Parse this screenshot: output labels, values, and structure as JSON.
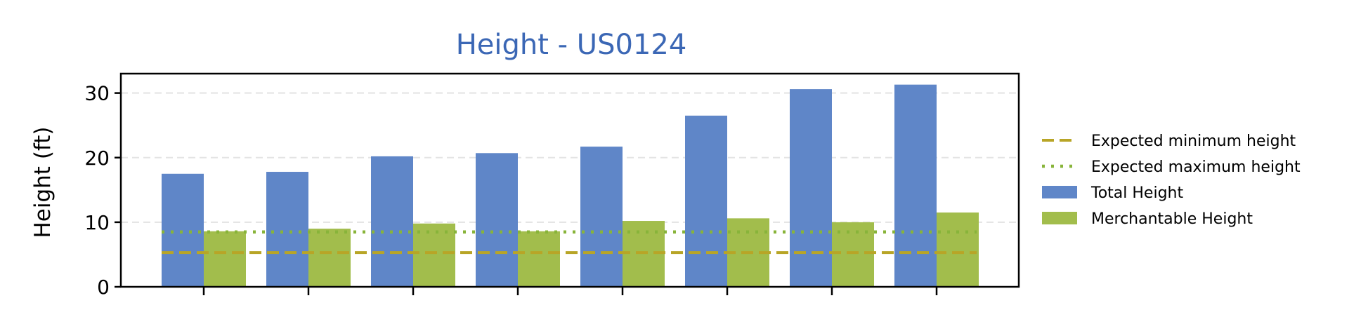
{
  "chart_data": {
    "type": "bar",
    "title": "Height - US0124",
    "xlabel": "",
    "ylabel": "Height (ft)",
    "ylim": [
      0,
      33
    ],
    "yticks": [
      0,
      10,
      20,
      30
    ],
    "categories": [
      "",
      "",
      "",
      "",
      "",
      "",
      "",
      ""
    ],
    "series": [
      {
        "name": "Total Height",
        "values": [
          17.5,
          17.8,
          20.2,
          20.7,
          21.7,
          26.5,
          30.6,
          31.3
        ]
      },
      {
        "name": "Merchantable Height",
        "values": [
          8.6,
          9.0,
          9.8,
          8.6,
          10.2,
          10.6,
          10.0,
          11.5
        ]
      }
    ],
    "reference_lines": [
      {
        "name": "Expected minimum height",
        "value": 5.3,
        "style": "dashed"
      },
      {
        "name": "Expected maximum height",
        "value": 8.5,
        "style": "dotted"
      }
    ],
    "grid": "horizontal dashed",
    "legend_position": "right"
  },
  "colors": {
    "title": "#3b67b5",
    "total": "#5f86c8",
    "merchantable": "#a2bd4c",
    "min_line": "#b8a527",
    "max_line": "#88b43a",
    "grid": "#e3e3e3"
  },
  "legend": [
    {
      "label": "Expected minimum height",
      "kind": "min_line"
    },
    {
      "label": "Expected maximum height",
      "kind": "max_line"
    },
    {
      "label": "Total Height",
      "kind": "total"
    },
    {
      "label": "Merchantable Height",
      "kind": "merchantable"
    }
  ]
}
